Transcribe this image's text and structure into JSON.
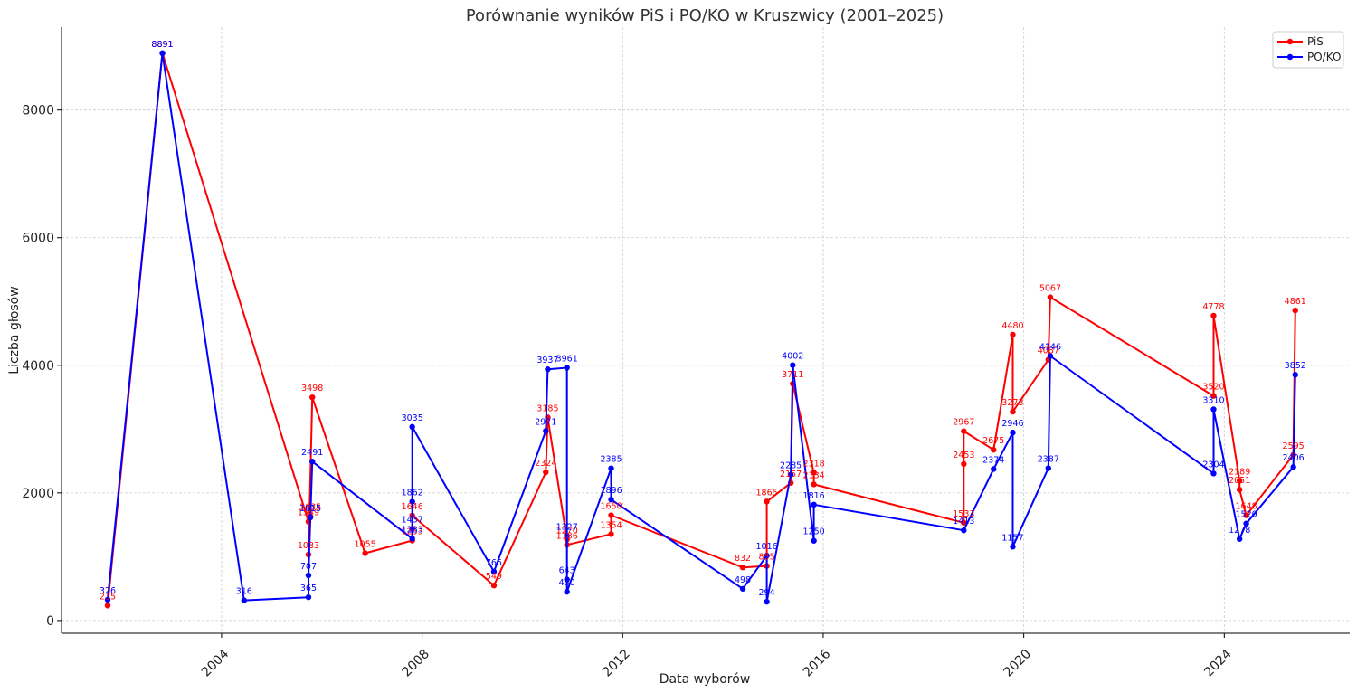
{
  "chart_data": {
    "type": "line",
    "title": "Porównanie wyników PiS i PO/KO w Kruszwicy (2001–2025)",
    "xlabel": "Data wyborów",
    "ylabel": "Liczba głosów",
    "x_ticks": [
      "2004",
      "2008",
      "2012",
      "2016",
      "2020",
      "2024"
    ],
    "y_ticks": [
      "0",
      "2000",
      "4000",
      "6000",
      "8000"
    ],
    "xlim": [
      "2000-10-22",
      "2026-07-03"
    ],
    "ylim": [
      -200,
      9300
    ],
    "grid": true,
    "legend_position": "top-right",
    "series": [
      {
        "name": "PiS",
        "color": "#ff0000",
        "points": [
          {
            "x": "2001-09-23",
            "y": 235
          },
          {
            "x": "2002-10-27",
            "y": 8891
          },
          {
            "x": "2005-09-25",
            "y": 1549
          },
          {
            "x": "2005-10-09",
            "y": 1635
          },
          {
            "x": "2005-09-25",
            "y": 1033
          },
          {
            "x": "2005-10-23",
            "y": 3498
          },
          {
            "x": "2006-11-12",
            "y": 1055
          },
          {
            "x": "2007-10-21",
            "y": 1253
          },
          {
            "x": "2007-10-21",
            "y": 1646
          },
          {
            "x": "2009-06-07",
            "y": 549
          },
          {
            "x": "2010-06-20",
            "y": 2324
          },
          {
            "x": "2010-07-04",
            "y": 3185
          },
          {
            "x": "2010-11-21",
            "y": 1270
          },
          {
            "x": "2010-11-21",
            "y": 1186
          },
          {
            "x": "2011-10-09",
            "y": 1354
          },
          {
            "x": "2011-10-09",
            "y": 1650
          },
          {
            "x": "2014-05-25",
            "y": 832
          },
          {
            "x": "2014-11-16",
            "y": 855
          },
          {
            "x": "2014-11-16",
            "y": 1865
          },
          {
            "x": "2015-05-10",
            "y": 2157
          },
          {
            "x": "2015-05-24",
            "y": 3711
          },
          {
            "x": "2015-10-25",
            "y": 2318
          },
          {
            "x": "2015-10-25",
            "y": 2134
          },
          {
            "x": "2018-10-21",
            "y": 1533
          },
          {
            "x": "2018-10-21",
            "y": 2453
          },
          {
            "x": "2018-10-21",
            "y": 2967
          },
          {
            "x": "2019-05-26",
            "y": 2675
          },
          {
            "x": "2019-10-13",
            "y": 4480
          },
          {
            "x": "2019-10-13",
            "y": 3273
          },
          {
            "x": "2020-06-28",
            "y": 4087
          },
          {
            "x": "2020-07-12",
            "y": 5067
          },
          {
            "x": "2023-10-15",
            "y": 3520
          },
          {
            "x": "2023-10-15",
            "y": 4778
          },
          {
            "x": "2024-04-21",
            "y": 2189
          },
          {
            "x": "2024-04-21",
            "y": 2051
          },
          {
            "x": "2024-06-09",
            "y": 1648
          },
          {
            "x": "2025-05-18",
            "y": 2595
          },
          {
            "x": "2025-06-01",
            "y": 4861
          }
        ]
      },
      {
        "name": "PO/KO",
        "color": "#0000ff",
        "points": [
          {
            "x": "2001-09-23",
            "y": 326
          },
          {
            "x": "2002-10-27",
            "y": 8891
          },
          {
            "x": "2004-06-13",
            "y": 316
          },
          {
            "x": "2005-09-25",
            "y": 365
          },
          {
            "x": "2005-09-25",
            "y": 707
          },
          {
            "x": "2005-10-09",
            "y": 1615
          },
          {
            "x": "2005-10-23",
            "y": 2491
          },
          {
            "x": "2007-10-21",
            "y": 1283
          },
          {
            "x": "2007-10-21",
            "y": 1437
          },
          {
            "x": "2007-10-21",
            "y": 1862
          },
          {
            "x": "2007-10-21",
            "y": 3035
          },
          {
            "x": "2009-06-07",
            "y": 765
          },
          {
            "x": "2010-06-20",
            "y": 2971
          },
          {
            "x": "2010-07-04",
            "y": 3937
          },
          {
            "x": "2010-11-21",
            "y": 3961
          },
          {
            "x": "2010-11-21",
            "y": 1327
          },
          {
            "x": "2010-11-21",
            "y": 643
          },
          {
            "x": "2010-11-21",
            "y": 450
          },
          {
            "x": "2011-10-09",
            "y": 2385
          },
          {
            "x": "2011-10-09",
            "y": 1896
          },
          {
            "x": "2014-05-25",
            "y": 498
          },
          {
            "x": "2014-11-16",
            "y": 1016
          },
          {
            "x": "2014-11-16",
            "y": 294
          },
          {
            "x": "2015-05-10",
            "y": 2285
          },
          {
            "x": "2015-05-24",
            "y": 4002
          },
          {
            "x": "2015-10-25",
            "y": 1250
          },
          {
            "x": "2015-10-25",
            "y": 1816
          },
          {
            "x": "2018-10-21",
            "y": 1413
          },
          {
            "x": "2019-05-26",
            "y": 2374
          },
          {
            "x": "2019-10-13",
            "y": 2946
          },
          {
            "x": "2019-10-13",
            "y": 1157
          },
          {
            "x": "2020-06-28",
            "y": 2387
          },
          {
            "x": "2020-07-12",
            "y": 4146
          },
          {
            "x": "2023-10-15",
            "y": 2304
          },
          {
            "x": "2023-10-15",
            "y": 3310
          },
          {
            "x": "2024-04-21",
            "y": 1278
          },
          {
            "x": "2024-06-09",
            "y": 1520
          },
          {
            "x": "2025-05-18",
            "y": 2406
          },
          {
            "x": "2025-06-01",
            "y": 3852
          }
        ]
      }
    ]
  }
}
